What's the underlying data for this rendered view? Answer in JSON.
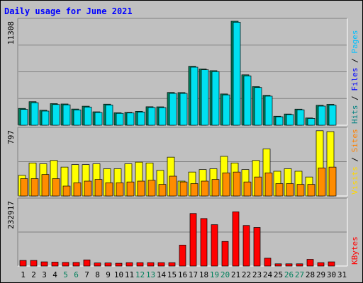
{
  "chart_data": {
    "type": "bar",
    "title": "Daily usage for June 2021",
    "categories": [
      "1",
      "2",
      "3",
      "4",
      "5",
      "6",
      "7",
      "8",
      "9",
      "10",
      "11",
      "12",
      "13",
      "14",
      "15",
      "16",
      "17",
      "18",
      "19",
      "20",
      "21",
      "22",
      "23",
      "24",
      "25",
      "26",
      "27",
      "28",
      "29",
      "30",
      "31"
    ],
    "weekend_days": [
      "5",
      "6",
      "12",
      "13",
      "19",
      "20",
      "26",
      "27"
    ],
    "panels": [
      {
        "id": "pages_files_hits",
        "scale_max_label": "11308",
        "ylim": [
          0,
          11308
        ],
        "side_labels": [
          {
            "text": "Hits",
            "color": "#008080"
          },
          {
            "text": "Files",
            "color": "#0000ff"
          },
          {
            "text": "Pages",
            "color": "#00c0ff"
          }
        ],
        "separator": " / ",
        "series": [
          {
            "name": "Hits",
            "color": "#00805c",
            "values": [
              1830,
              2560,
              1630,
              2350,
              2310,
              1760,
              2070,
              1460,
              2290,
              1360,
              1400,
              1510,
              2010,
              2000,
              3560,
              3550,
              6410,
              6120,
              5930,
              3400,
              11308,
              5480,
              4200,
              3250,
              980,
              1220,
              1750,
              790,
              2170,
              2270,
              0
            ]
          },
          {
            "name": "Files",
            "color": "#00e0f0",
            "values": [
              1720,
              2450,
              1540,
              2250,
              2220,
              1670,
              1980,
              1390,
              2200,
              1290,
              1330,
              1440,
              1930,
              1920,
              3460,
              3460,
              6310,
              6030,
              5830,
              3300,
              11200,
              5370,
              4100,
              3160,
              920,
              1160,
              1680,
              740,
              2080,
              2180,
              0
            ]
          }
        ]
      },
      {
        "id": "sites_visits",
        "scale_max_label": "797",
        "ylim": [
          0,
          797
        ],
        "side_labels": [
          {
            "text": "Visits",
            "color": "#ffd700"
          },
          {
            "text": "Sites",
            "color": "#ff8000"
          }
        ],
        "separator": " / ",
        "series": [
          {
            "name": "Visits",
            "color": "#ffff00",
            "values": [
              250,
              400,
              390,
              430,
              350,
              380,
              380,
              390,
              330,
              330,
              390,
              410,
              400,
              310,
              470,
              180,
              290,
              320,
              330,
              480,
              400,
              320,
              430,
              570,
              300,
              330,
              300,
              230,
              790,
              780,
              0
            ]
          },
          {
            "name": "Sites",
            "color": "#ff8c00",
            "values": [
              210,
              210,
              260,
              210,
              120,
              160,
              180,
              200,
              160,
              160,
              170,
              180,
              190,
              140,
              240,
              170,
              150,
              180,
              200,
              280,
              290,
              170,
              230,
              280,
              150,
              150,
              140,
              140,
              340,
              350,
              0
            ]
          }
        ]
      },
      {
        "id": "kbytes",
        "scale_max_label": "232917",
        "ylim": [
          0,
          232917
        ],
        "side_labels": [
          {
            "text": "KBytes",
            "color": "#ff0000"
          }
        ],
        "separator": "",
        "series": [
          {
            "name": "KBytes",
            "color": "#ff0000",
            "values": [
              20000,
              20000,
              15000,
              14000,
              13000,
              13000,
              22000,
              11000,
              11000,
              10000,
              12000,
              12000,
              12000,
              12000,
              12000,
              75000,
              188000,
              170000,
              148000,
              88000,
              194000,
              145000,
              138000,
              28000,
              8000,
              8000,
              8000,
              24000,
              12000,
              15000,
              0
            ]
          }
        ]
      }
    ],
    "colors": {
      "background": "#c0c0c0",
      "title": "#0000ff",
      "weekend_label": "#00805c",
      "weekday_label": "#000000",
      "grid": "#808080"
    }
  }
}
